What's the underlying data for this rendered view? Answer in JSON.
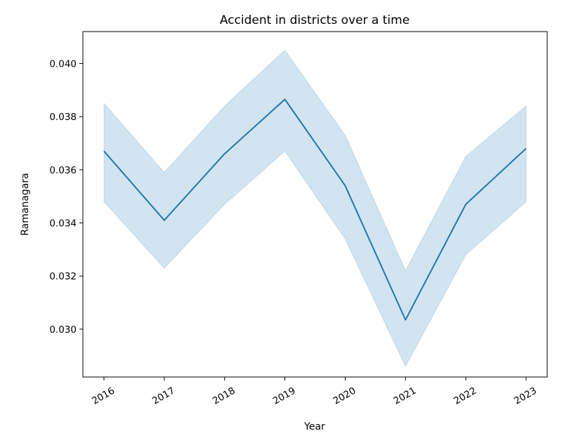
{
  "chart_data": {
    "type": "line",
    "title": "Accident in districts over a time",
    "xlabel": "Year",
    "ylabel": "Ramanagara",
    "x": [
      "2016",
      "2017",
      "2018",
      "2019",
      "2020",
      "2021",
      "2022",
      "2023"
    ],
    "ylim": [
      0.0282,
      0.0412
    ],
    "yticks": [
      "0.030",
      "0.032",
      "0.034",
      "0.036",
      "0.038",
      "0.040"
    ],
    "grid": false,
    "series": [
      {
        "values": [
          0.0367,
          0.0341,
          0.0366,
          0.03865,
          0.0354,
          0.03035,
          0.0347,
          0.0368
        ],
        "ci_lower": [
          0.0348,
          0.0323,
          0.0347,
          0.0367,
          0.0334,
          0.0286,
          0.0328,
          0.0348
        ],
        "ci_upper": [
          0.0385,
          0.0359,
          0.0384,
          0.0405,
          0.0373,
          0.0322,
          0.0365,
          0.0384
        ],
        "color": "#1f77b4",
        "band_color": "#1f77b4"
      }
    ]
  }
}
